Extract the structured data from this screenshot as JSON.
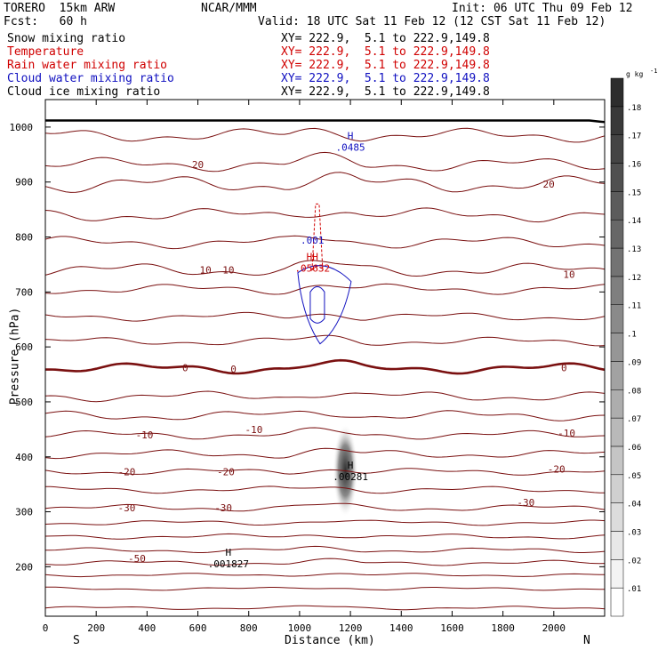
{
  "header": {
    "model": "TORERO  15km ARW",
    "org": "NCAR/MMM",
    "init": "Init: 06 UTC Thu 09 Feb 12",
    "fcst": "Fcst:   60 h",
    "valid": "Valid: 18 UTC Sat 11 Feb 12 (12 CST Sat 11 Feb 12)"
  },
  "fields": [
    {
      "name": "Snow mixing ratio",
      "xy": "",
      "color": "#000000"
    },
    {
      "name": "Temperature",
      "xy": "XY= 222.9,  5.1 to 222.9,149.8",
      "color": "#d00000"
    },
    {
      "name": "Rain water mixing ratio",
      "xy": "XY= 222.9,  5.1 to 222.9,149.8",
      "color": "#d00000"
    },
    {
      "name": "Cloud water mixing ratio",
      "xy": "XY= 222.9,  5.1 to 222.9,149.8",
      "color": "#1010c0"
    },
    {
      "name": "Cloud ice mixing ratio",
      "xy": "XY= 222.9,  5.1 to 222.9,149.8",
      "color": "#000000"
    }
  ],
  "snow_xy": "XY= 222.9,  5.1 to 222.9,149.8",
  "chart_data": {
    "type": "cross-section contour",
    "xlabel": "Distance (km)",
    "ylabel": "Pressure (hPa)",
    "xlim": [
      0,
      2200
    ],
    "ylim": [
      1050,
      110
    ],
    "x_ticks": [
      0,
      200,
      400,
      600,
      800,
      1000,
      1200,
      1400,
      1600,
      1800,
      2000
    ],
    "y_ticks": [
      200,
      300,
      400,
      500,
      600,
      700,
      800,
      900,
      1000
    ],
    "endpoints": {
      "left": "S",
      "right": "N"
    },
    "temperature_contours_C": [
      -50,
      -30,
      -30,
      -30,
      -20,
      -20,
      -20,
      -10,
      -10,
      -10,
      0,
      0,
      0,
      10,
      10,
      10,
      20,
      20
    ],
    "temperature_labels": [
      {
        "text": "-50",
        "x": 360,
        "p": 215
      },
      {
        "text": "-30",
        "x": 320,
        "p": 307
      },
      {
        "text": "-30",
        "x": 700,
        "p": 307
      },
      {
        "text": "-30",
        "x": 1890,
        "p": 317
      },
      {
        "text": "-20",
        "x": 320,
        "p": 373
      },
      {
        "text": "-20",
        "x": 710,
        "p": 373
      },
      {
        "text": "-20",
        "x": 2010,
        "p": 378
      },
      {
        "text": "-10",
        "x": 390,
        "p": 440
      },
      {
        "text": "-10",
        "x": 820,
        "p": 450
      },
      {
        "text": "-10",
        "x": 2050,
        "p": 443
      },
      {
        "text": "0",
        "x": 550,
        "p": 562
      },
      {
        "text": "0",
        "x": 740,
        "p": 560
      },
      {
        "text": "0",
        "x": 2040,
        "p": 562
      },
      {
        "text": "10",
        "x": 630,
        "p": 740
      },
      {
        "text": "10",
        "x": 720,
        "p": 740
      },
      {
        "text": "10",
        "x": 2060,
        "p": 732
      },
      {
        "text": "20",
        "x": 600,
        "p": 932
      },
      {
        "text": "20",
        "x": 1980,
        "p": 896
      }
    ],
    "extrema": [
      {
        "type": "H",
        "value": ".001827",
        "x": 720,
        "p": 207,
        "field": "Cloud ice mixing ratio"
      },
      {
        "type": "H",
        "value": ".00281",
        "x": 1200,
        "p": 366,
        "field": "Snow mixing ratio"
      },
      {
        "type": "HH",
        "value": ".05632",
        "x": 1050,
        "p": 745,
        "field": "Rain water mixing ratio"
      },
      {
        "type": "",
        "value": ".001",
        "x": 1050,
        "p": 796,
        "field": "Cloud water mixing ratio"
      },
      {
        "type": "H",
        "value": ".0485",
        "x": 1200,
        "p": 965,
        "field": "Cloud water mixing ratio"
      }
    ],
    "colorbar": {
      "unit": "g kg",
      "unit_exp": "-1",
      "ticks": [
        ".01",
        ".02",
        ".03",
        ".04",
        ".05",
        ".06",
        ".07",
        ".08",
        ".09",
        ".1",
        ".11",
        ".12",
        ".13",
        ".14",
        ".15",
        ".16",
        ".17",
        ".18"
      ]
    }
  }
}
